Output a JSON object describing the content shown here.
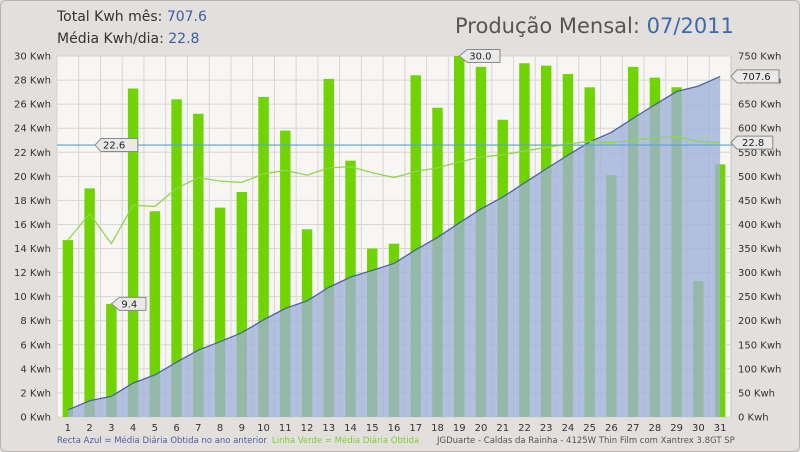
{
  "header": {
    "total_label": "Total Kwh mês:",
    "total_value": "707.6",
    "avg_label": "Média Kwh/dia:",
    "avg_value": "22.8",
    "title_label": "Produção Mensal:",
    "title_value": "07/2011"
  },
  "footer": {
    "legend_blue": "Recta Azul = Média Diária Obtida no ano anterior",
    "legend_green": "Linha Verde = Média Diária Obtida",
    "credits": "JGDuarte  -  Caldas da Rainha  -  4125W Thin Film com Xantrex 3.8GT SP"
  },
  "colors": {
    "bar": "#6fd400",
    "area_fill": "#9fb1d9",
    "area_line": "#4a62a6",
    "avg_line": "#8fd64e",
    "ref_line": "#5a9fd6",
    "plot_bg": "#f7f6f4",
    "grid": "#d9d6d2"
  },
  "chart_data": {
    "type": "bar",
    "categories": [
      "1",
      "2",
      "3",
      "4",
      "5",
      "6",
      "7",
      "8",
      "9",
      "10",
      "11",
      "12",
      "13",
      "14",
      "15",
      "16",
      "17",
      "18",
      "19",
      "20",
      "21",
      "22",
      "23",
      "24",
      "25",
      "26",
      "27",
      "28",
      "29",
      "30",
      "31"
    ],
    "ylabel_left_unit": "Kwh",
    "ylabel_right_unit": "Kwh",
    "ylim_left": [
      0,
      30
    ],
    "ylim_right": [
      0,
      750
    ],
    "yticks_left": [
      "0 Kwh",
      "2 Kwh",
      "4 Kwh",
      "6 Kwh",
      "8 Kwh",
      "10 Kwh",
      "12 Kwh",
      "14 Kwh",
      "16 Kwh",
      "18 Kwh",
      "20 Kwh",
      "22 Kwh",
      "24 Kwh",
      "26 Kwh",
      "28 Kwh",
      "30 Kwh"
    ],
    "yticks_right": [
      "0 Kwh",
      "50 Kwh",
      "100 Kwh",
      "150 Kwh",
      "200 Kwh",
      "250 Kwh",
      "300 Kwh",
      "350 Kwh",
      "400 Kwh",
      "450 Kwh",
      "500 Kwh",
      "550 Kwh",
      "600 Kwh",
      "650 Kwh",
      "700 Kwh",
      "750 Kwh"
    ],
    "grid": true,
    "series": [
      {
        "kind": "bar",
        "axis": "left",
        "values": [
          14.7,
          19.0,
          9.4,
          27.3,
          17.1,
          26.4,
          25.2,
          17.4,
          18.7,
          26.6,
          23.8,
          15.6,
          28.1,
          21.3,
          14.0,
          14.4,
          28.4,
          25.7,
          30.0,
          29.1,
          24.7,
          29.4,
          29.2,
          28.5,
          27.4,
          20.1,
          29.1,
          28.2,
          27.4,
          11.3,
          21.0
        ]
      },
      {
        "kind": "area",
        "axis": "right",
        "values": [
          14.7,
          33.7,
          43.1,
          70.4,
          87.5,
          113.9,
          139.1,
          156.5,
          175.2,
          201.8,
          225.6,
          241.2,
          269.3,
          290.6,
          304.6,
          319.0,
          347.4,
          373.1,
          403.1,
          432.2,
          456.9,
          486.3,
          515.5,
          544.0,
          571.4,
          591.5,
          620.6,
          648.8,
          676.2,
          687.5,
          707.6
        ]
      },
      {
        "kind": "line",
        "axis": "left",
        "values": [
          14.7,
          16.9,
          14.4,
          17.6,
          17.5,
          19.0,
          19.9,
          19.6,
          19.5,
          20.2,
          20.5,
          20.1,
          20.7,
          20.8,
          20.3,
          19.9,
          20.4,
          20.7,
          21.2,
          21.6,
          21.8,
          22.1,
          22.4,
          22.7,
          22.9,
          22.8,
          23.0,
          23.2,
          23.3,
          22.9,
          22.8
        ]
      },
      {
        "kind": "hline",
        "axis": "left",
        "value": 22.6
      }
    ],
    "annotations": [
      {
        "text": "30.0",
        "x": "19",
        "value": 30.0,
        "axis": "left"
      },
      {
        "text": "9.4",
        "x": "3",
        "value": 9.4,
        "axis": "left"
      },
      {
        "text": "22.6",
        "x": "2",
        "value": 22.6,
        "axis": "left",
        "side": "left"
      },
      {
        "text": "22.8",
        "x": "31",
        "value": 22.8,
        "axis": "left",
        "side": "right"
      },
      {
        "text": "707.6",
        "x": "31",
        "value": 707.6,
        "axis": "right",
        "side": "right"
      }
    ]
  }
}
